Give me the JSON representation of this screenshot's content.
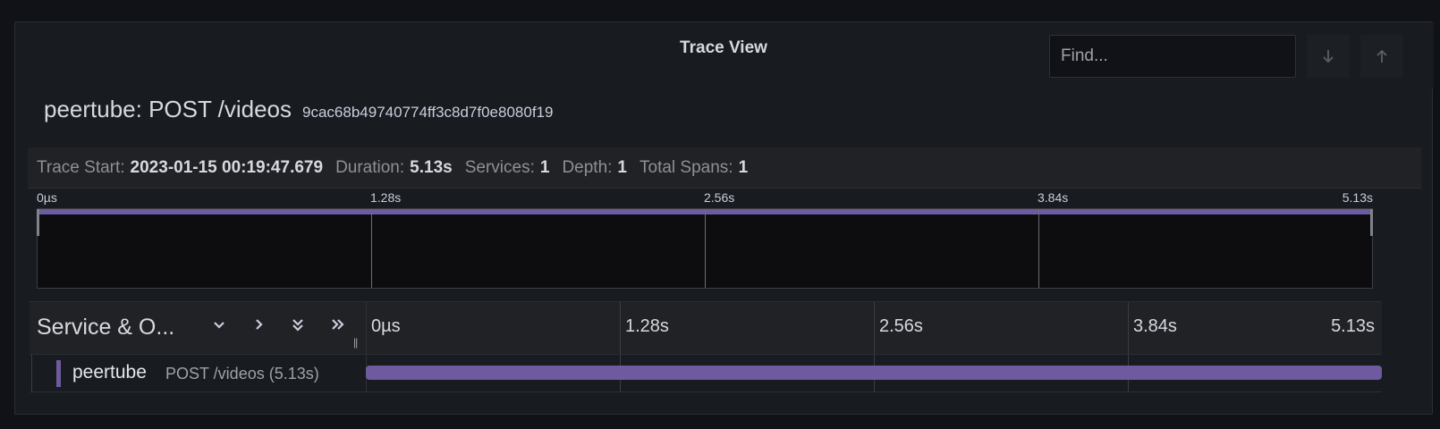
{
  "panel": {
    "title": "Trace View"
  },
  "search": {
    "placeholder": "Find...",
    "next_icon": "arrow-down-icon",
    "prev_icon": "arrow-up-icon"
  },
  "trace": {
    "name": "peertube: POST /videos",
    "id": "9cac68b49740774ff3c8d7f0e8080f19"
  },
  "meta": [
    {
      "key": "Trace Start:",
      "value": "2023-01-15 00:19:47.679"
    },
    {
      "key": "Duration:",
      "value": "5.13s"
    },
    {
      "key": "Services:",
      "value": "1"
    },
    {
      "key": "Depth:",
      "value": "1"
    },
    {
      "key": "Total Spans:",
      "value": "1"
    }
  ],
  "minimap": {
    "ticks": [
      "0µs",
      "1.28s",
      "2.56s",
      "3.84s",
      "5.13s"
    ]
  },
  "timeline": {
    "column_label": "Service & O...",
    "controls": [
      "chevron-down-icon",
      "chevron-right-icon",
      "double-chevron-down-icon",
      "double-chevron-right-icon"
    ],
    "ticks": [
      "0µs",
      "1.28s",
      "2.56s",
      "3.84s",
      "5.13s"
    ]
  },
  "spans": [
    {
      "service": "peertube",
      "operation": "POST /videos (5.13s)",
      "start_fraction": 0,
      "duration_fraction": 1.0,
      "color": "#6e5a9e"
    }
  ],
  "colors": {
    "accent": "#6e5a9e",
    "background": "#181b1f"
  }
}
